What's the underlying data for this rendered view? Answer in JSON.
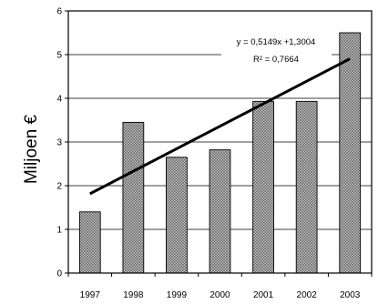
{
  "chart_data": {
    "type": "bar",
    "categories": [
      "1997",
      "1998",
      "1999",
      "2000",
      "2001",
      "2002",
      "2003"
    ],
    "values": [
      1.4,
      3.45,
      2.65,
      2.82,
      3.93,
      3.93,
      5.5
    ],
    "ylabel": "Miljoen €",
    "xlabel": "",
    "ylim": [
      0,
      6
    ],
    "yticks": [
      "0",
      "1",
      "2",
      "3",
      "4",
      "5",
      "6"
    ],
    "grid": true,
    "bar_pattern": "crosshatch",
    "trendline": {
      "equation": "y = 0,5149x +1,3004",
      "r_squared": "R² = 0,7664",
      "slope": 0.5149,
      "intercept": 1.3004
    }
  }
}
